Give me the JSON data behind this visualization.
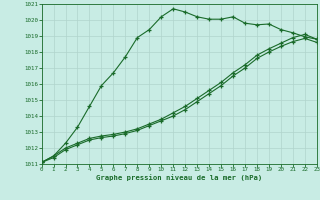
{
  "title": "Graphe pression niveau de la mer (hPa)",
  "bg_color": "#c8ece4",
  "grid_color": "#b0d4cc",
  "line_color": "#1a6b2a",
  "xlim": [
    0,
    23
  ],
  "ylim": [
    1011,
    1021
  ],
  "xticks": [
    0,
    1,
    2,
    3,
    4,
    5,
    6,
    7,
    8,
    9,
    10,
    11,
    12,
    13,
    14,
    15,
    16,
    17,
    18,
    19,
    20,
    21,
    22,
    23
  ],
  "yticks": [
    1011,
    1012,
    1013,
    1014,
    1015,
    1016,
    1017,
    1018,
    1019,
    1020,
    1021
  ],
  "line1_x": [
    0,
    1,
    2,
    3,
    4,
    5,
    6,
    7,
    8,
    9,
    10,
    11,
    12,
    13,
    14,
    15,
    16,
    17,
    18,
    19,
    20,
    21,
    22,
    23
  ],
  "line1_y": [
    1011.1,
    1011.5,
    1012.3,
    1013.3,
    1014.6,
    1015.9,
    1016.7,
    1017.7,
    1018.9,
    1019.4,
    1020.2,
    1020.7,
    1020.5,
    1020.2,
    1020.05,
    1020.05,
    1020.2,
    1019.8,
    1019.7,
    1019.75,
    1019.4,
    1019.2,
    1018.95,
    1018.8
  ],
  "line2_x": [
    0,
    1,
    2,
    3,
    4,
    5,
    6,
    7,
    8,
    9,
    10,
    11,
    12,
    13,
    14,
    15,
    16,
    17,
    18,
    19,
    20,
    21,
    22,
    23
  ],
  "line2_y": [
    1011.1,
    1011.5,
    1012.0,
    1012.3,
    1012.6,
    1012.75,
    1012.85,
    1013.0,
    1013.2,
    1013.5,
    1013.8,
    1014.2,
    1014.6,
    1015.1,
    1015.6,
    1016.1,
    1016.7,
    1017.2,
    1017.8,
    1018.2,
    1018.55,
    1018.9,
    1019.1,
    1018.8
  ],
  "line3_x": [
    0,
    1,
    2,
    3,
    4,
    5,
    6,
    7,
    8,
    9,
    10,
    11,
    12,
    13,
    14,
    15,
    16,
    17,
    18,
    19,
    20,
    21,
    22,
    23
  ],
  "line3_y": [
    1011.1,
    1011.4,
    1011.9,
    1012.2,
    1012.5,
    1012.65,
    1012.75,
    1012.9,
    1013.1,
    1013.4,
    1013.7,
    1014.0,
    1014.4,
    1014.9,
    1015.4,
    1015.9,
    1016.5,
    1017.0,
    1017.6,
    1018.0,
    1018.35,
    1018.65,
    1018.85,
    1018.6
  ],
  "figsize": [
    3.2,
    2.0
  ],
  "dpi": 100
}
